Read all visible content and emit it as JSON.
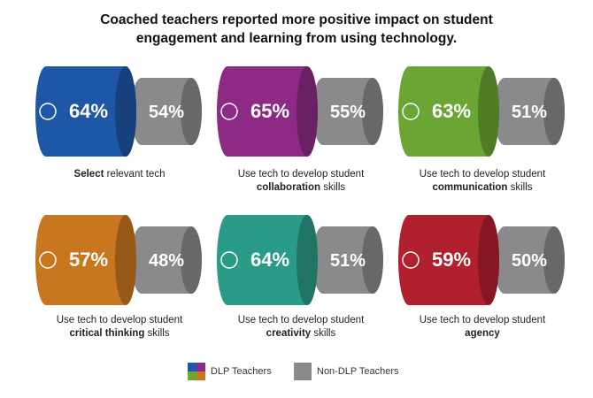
{
  "title": "Coached teachers reported more positive impact on student engagement and learning from using technology.",
  "panels": [
    {
      "color": "#1d57a5",
      "dlp": "64%",
      "non_dlp": "54%",
      "label": [
        {
          "text": "Select",
          "bold": true
        },
        {
          "text": " relevant tech",
          "bold": false
        }
      ]
    },
    {
      "color": "#8c2a86",
      "dlp": "65%",
      "non_dlp": "55%",
      "label": [
        {
          "text": "Use tech to develop student ",
          "bold": false
        },
        {
          "text": "collaboration",
          "bold": true
        },
        {
          "text": " skills",
          "bold": false
        }
      ]
    },
    {
      "color": "#6ba534",
      "dlp": "63%",
      "non_dlp": "51%",
      "label": [
        {
          "text": "Use tech to develop student ",
          "bold": false
        },
        {
          "text": "communication",
          "bold": true
        },
        {
          "text": " skills",
          "bold": false
        }
      ]
    },
    {
      "color": "#c8771f",
      "dlp": "57%",
      "non_dlp": "48%",
      "label": [
        {
          "text": "Use tech to develop student ",
          "bold": false
        },
        {
          "text": "critical thinking",
          "bold": true
        },
        {
          "text": " skills",
          "bold": false
        }
      ]
    },
    {
      "color": "#2a9b87",
      "dlp": "64%",
      "non_dlp": "51%",
      "label": [
        {
          "text": "Use tech to develop student ",
          "bold": false
        },
        {
          "text": "creativity",
          "bold": true
        },
        {
          "text": " skills",
          "bold": false
        }
      ]
    },
    {
      "color": "#b1202f",
      "dlp": "59%",
      "non_dlp": "50%",
      "label": [
        {
          "text": "Use tech to develop student ",
          "bold": false
        },
        {
          "text": "agency",
          "bold": true
        }
      ]
    }
  ],
  "legend": {
    "dlp": "DLP Teachers",
    "non_dlp": "Non-DLP Teachers",
    "non_dlp_color": "#8a8a8c"
  }
}
